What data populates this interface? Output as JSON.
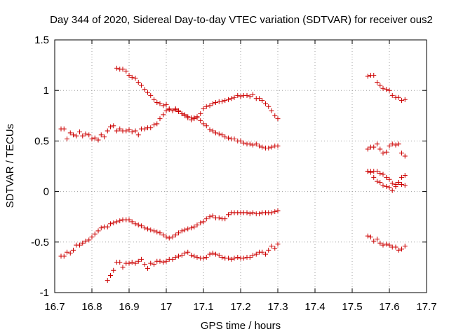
{
  "chart_data": {
    "type": "scatter",
    "title": "Day 344 of 2020, Sidereal Day-to-day VTEC variation (SDTVAR) for receiver ous2",
    "xlabel": "GPS time / hours",
    "ylabel": "SDTVAR / TECUs",
    "xlim": [
      16.7,
      17.7
    ],
    "ylim": [
      -1,
      1.5
    ],
    "xticks": [
      16.7,
      16.8,
      16.9,
      17.0,
      17.1,
      17.2,
      17.3,
      17.4,
      17.5,
      17.6,
      17.7
    ],
    "xtick_labels": [
      "16.7",
      "16.8",
      "16.9",
      "17",
      "17.1",
      "17.2",
      "17.3",
      "17.4",
      "17.5",
      "17.6",
      "17.7"
    ],
    "yticks": [
      -1,
      -0.5,
      0,
      0.5,
      1,
      1.5
    ],
    "ytick_labels": [
      "-1",
      "-0.5",
      "0",
      "0.5",
      "1",
      "1.5"
    ],
    "grid": true,
    "marker": "+",
    "marker_color": "#cc0000",
    "series": [
      {
        "name": "trace-upper-left-low",
        "x": [
          16.717,
          16.725,
          16.733,
          16.742,
          16.75,
          16.758,
          16.767,
          16.775,
          16.783,
          16.792,
          16.8,
          16.808,
          16.817,
          16.825,
          16.833,
          16.842,
          16.85,
          16.858,
          16.867,
          16.875,
          16.883,
          16.892,
          16.9,
          16.908,
          16.917,
          16.925,
          16.933,
          16.942,
          16.95,
          16.958,
          16.967,
          16.975,
          16.983,
          16.992,
          17.0,
          17.008,
          17.017,
          17.025,
          17.033,
          17.042,
          17.05,
          17.058,
          17.067,
          17.075,
          17.083,
          17.092,
          17.1,
          17.108,
          17.117,
          17.125,
          17.133,
          17.142,
          17.15,
          17.158,
          17.167,
          17.175,
          17.183,
          17.192,
          17.2,
          17.208,
          17.217,
          17.225,
          17.233,
          17.242,
          17.25,
          17.258,
          17.267,
          17.275,
          17.283,
          17.292,
          17.3
        ],
        "y": [
          0.62,
          0.62,
          0.52,
          0.58,
          0.56,
          0.55,
          0.59,
          0.55,
          0.57,
          0.56,
          0.52,
          0.53,
          0.51,
          0.56,
          0.54,
          0.6,
          0.64,
          0.65,
          0.6,
          0.62,
          0.6,
          0.6,
          0.61,
          0.59,
          0.6,
          0.56,
          0.62,
          0.62,
          0.63,
          0.63,
          0.66,
          0.67,
          0.72,
          0.76,
          0.8,
          0.82,
          0.8,
          0.82,
          0.8,
          0.77,
          0.76,
          0.74,
          0.73,
          0.72,
          0.73,
          0.7,
          0.67,
          0.65,
          0.61,
          0.6,
          0.58,
          0.57,
          0.56,
          0.54,
          0.53,
          0.52,
          0.52,
          0.5,
          0.5,
          0.48,
          0.47,
          0.47,
          0.46,
          0.47,
          0.45,
          0.44,
          0.43,
          0.43,
          0.44,
          0.45,
          0.45
        ]
      },
      {
        "name": "trace-upper-left-high",
        "x": [
          16.867,
          16.875,
          16.883,
          16.892,
          16.9,
          16.908,
          16.917,
          16.925,
          16.933,
          16.942,
          16.95,
          16.958,
          16.967,
          16.975,
          16.983,
          16.992,
          17.0,
          17.008,
          17.017,
          17.025,
          17.033,
          17.042,
          17.05,
          17.058,
          17.067,
          17.075,
          17.083,
          17.092,
          17.1,
          17.108,
          17.117,
          17.125,
          17.133,
          17.142,
          17.15,
          17.158,
          17.167,
          17.175,
          17.183,
          17.192,
          17.2,
          17.208,
          17.217,
          17.225,
          17.233,
          17.242,
          17.25,
          17.258,
          17.267,
          17.275,
          17.283,
          17.292,
          17.3
        ],
        "y": [
          1.22,
          1.21,
          1.21,
          1.19,
          1.15,
          1.13,
          1.12,
          1.08,
          1.05,
          1.01,
          0.98,
          0.95,
          0.91,
          0.88,
          0.87,
          0.85,
          0.86,
          0.81,
          0.8,
          0.81,
          0.79,
          0.77,
          0.75,
          0.73,
          0.71,
          0.73,
          0.74,
          0.77,
          0.82,
          0.84,
          0.85,
          0.87,
          0.88,
          0.89,
          0.89,
          0.9,
          0.91,
          0.92,
          0.93,
          0.95,
          0.94,
          0.95,
          0.95,
          0.94,
          0.96,
          0.92,
          0.92,
          0.9,
          0.87,
          0.84,
          0.8,
          0.75,
          0.72
        ]
      },
      {
        "name": "trace-lower-left-upper",
        "x": [
          16.717,
          16.725,
          16.733,
          16.742,
          16.75,
          16.758,
          16.767,
          16.775,
          16.783,
          16.792,
          16.8,
          16.808,
          16.817,
          16.825,
          16.833,
          16.842,
          16.85,
          16.858,
          16.867,
          16.875,
          16.883,
          16.892,
          16.9,
          16.908,
          16.917,
          16.925,
          16.933,
          16.942,
          16.95,
          16.958,
          16.967,
          16.975,
          16.983,
          16.992,
          17.0,
          17.008,
          17.017,
          17.025,
          17.033,
          17.042,
          17.05,
          17.058,
          17.067,
          17.075,
          17.083,
          17.092,
          17.1,
          17.108,
          17.117,
          17.125,
          17.133,
          17.142,
          17.15,
          17.158,
          17.167,
          17.175,
          17.183,
          17.192,
          17.2,
          17.208,
          17.217,
          17.225,
          17.233,
          17.242,
          17.25,
          17.258,
          17.267,
          17.275,
          17.283,
          17.292,
          17.3
        ],
        "y": [
          -0.64,
          -0.64,
          -0.6,
          -0.61,
          -0.58,
          -0.53,
          -0.53,
          -0.51,
          -0.49,
          -0.48,
          -0.45,
          -0.42,
          -0.39,
          -0.36,
          -0.35,
          -0.35,
          -0.32,
          -0.31,
          -0.3,
          -0.29,
          -0.28,
          -0.28,
          -0.28,
          -0.3,
          -0.32,
          -0.33,
          -0.34,
          -0.36,
          -0.37,
          -0.38,
          -0.39,
          -0.4,
          -0.41,
          -0.43,
          -0.45,
          -0.46,
          -0.45,
          -0.43,
          -0.41,
          -0.39,
          -0.38,
          -0.37,
          -0.36,
          -0.35,
          -0.33,
          -0.31,
          -0.3,
          -0.27,
          -0.25,
          -0.24,
          -0.26,
          -0.26,
          -0.27,
          -0.27,
          -0.23,
          -0.21,
          -0.21,
          -0.21,
          -0.21,
          -0.21,
          -0.21,
          -0.22,
          -0.21,
          -0.22,
          -0.22,
          -0.21,
          -0.21,
          -0.21,
          -0.21,
          -0.2,
          -0.19
        ]
      },
      {
        "name": "trace-lower-left-bottom",
        "x": [
          16.842,
          16.85,
          16.858,
          16.867,
          16.875,
          16.883,
          16.892,
          16.9,
          16.908,
          16.917,
          16.925,
          16.933,
          16.942,
          16.95,
          16.958,
          16.967,
          16.975,
          16.983,
          16.992,
          17.0,
          17.008,
          17.017,
          17.025,
          17.033,
          17.042,
          17.05,
          17.058,
          17.067,
          17.075,
          17.083,
          17.092,
          17.1,
          17.108,
          17.117,
          17.125,
          17.133,
          17.142,
          17.15,
          17.158,
          17.167,
          17.175,
          17.183,
          17.192,
          17.2,
          17.208,
          17.217,
          17.225,
          17.233,
          17.242,
          17.25,
          17.258,
          17.267,
          17.275,
          17.283,
          17.292,
          17.3
        ],
        "y": [
          -0.88,
          -0.83,
          -0.78,
          -0.7,
          -0.7,
          -0.75,
          -0.71,
          -0.71,
          -0.7,
          -0.71,
          -0.69,
          -0.67,
          -0.72,
          -0.76,
          -0.71,
          -0.72,
          -0.69,
          -0.69,
          -0.7,
          -0.69,
          -0.67,
          -0.67,
          -0.65,
          -0.64,
          -0.63,
          -0.61,
          -0.6,
          -0.63,
          -0.64,
          -0.65,
          -0.66,
          -0.66,
          -0.65,
          -0.62,
          -0.61,
          -0.62,
          -0.63,
          -0.65,
          -0.66,
          -0.66,
          -0.67,
          -0.66,
          -0.65,
          -0.66,
          -0.66,
          -0.65,
          -0.65,
          -0.63,
          -0.62,
          -0.6,
          -0.6,
          -0.62,
          -0.58,
          -0.54,
          -0.56,
          -0.52
        ]
      },
      {
        "name": "trace-right-1",
        "x": [
          17.542,
          17.55,
          17.558,
          17.567,
          17.575,
          17.583,
          17.592,
          17.6,
          17.608,
          17.617,
          17.625,
          17.633,
          17.642
        ],
        "y": [
          1.14,
          1.15,
          1.15,
          1.08,
          1.05,
          1.02,
          1.01,
          1.0,
          0.95,
          0.93,
          0.93,
          0.9,
          0.91
        ]
      },
      {
        "name": "trace-right-2",
        "x": [
          17.542,
          17.55,
          17.558,
          17.567,
          17.575,
          17.583,
          17.592,
          17.6,
          17.608,
          17.617,
          17.625,
          17.633,
          17.642
        ],
        "y": [
          0.42,
          0.44,
          0.44,
          0.47,
          0.42,
          0.38,
          0.39,
          0.45,
          0.47,
          0.46,
          0.47,
          0.38,
          0.35
        ]
      },
      {
        "name": "trace-right-3",
        "x": [
          17.542,
          17.55,
          17.558,
          17.567,
          17.575,
          17.583,
          17.592,
          17.6,
          17.608,
          17.617,
          17.625,
          17.633,
          17.642
        ],
        "y": [
          0.2,
          0.2,
          0.2,
          0.2,
          0.18,
          0.17,
          0.14,
          0.12,
          0.08,
          0.07,
          0.09,
          0.14,
          0.16
        ]
      },
      {
        "name": "trace-right-4",
        "x": [
          17.542,
          17.55,
          17.558,
          17.567,
          17.575,
          17.583,
          17.592,
          17.6,
          17.608,
          17.617,
          17.625,
          17.633,
          17.642
        ],
        "y": [
          0.2,
          0.19,
          0.14,
          0.1,
          0.09,
          0.06,
          0.05,
          0.04,
          0.01,
          0.05,
          0.09,
          0.07,
          0.06
        ]
      },
      {
        "name": "trace-right-5",
        "x": [
          17.542,
          17.55,
          17.558,
          17.567,
          17.575,
          17.583,
          17.592,
          17.6,
          17.608,
          17.617,
          17.625,
          17.633,
          17.642
        ],
        "y": [
          -0.44,
          -0.45,
          -0.49,
          -0.47,
          -0.51,
          -0.53,
          -0.52,
          -0.53,
          -0.55,
          -0.55,
          -0.58,
          -0.57,
          -0.54
        ]
      }
    ]
  }
}
